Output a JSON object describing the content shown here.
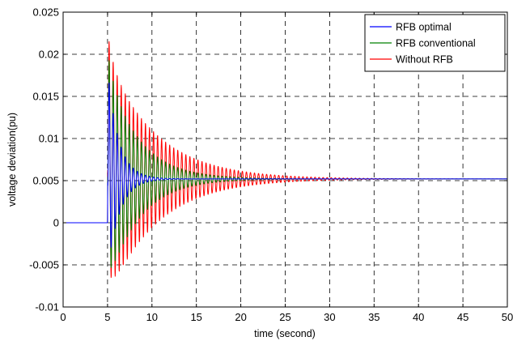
{
  "chart_data": {
    "type": "line",
    "xlabel": "time (second)",
    "ylabel": "voltage deviation(pu)",
    "xlim": [
      0,
      50
    ],
    "ylim": [
      -0.01,
      0.025
    ],
    "xticks": [
      0,
      5,
      10,
      15,
      20,
      25,
      30,
      35,
      40,
      45,
      50
    ],
    "yticks": [
      -0.01,
      -0.005,
      0,
      0.005,
      0.01,
      0.015,
      0.02,
      0.025
    ],
    "xtick_labels": [
      "0",
      "5",
      "10",
      "15",
      "20",
      "25",
      "30",
      "35",
      "40",
      "45",
      "50"
    ],
    "ytick_labels": [
      "-0.01",
      "-0.005",
      "0",
      "0.005",
      "0.01",
      "0.015",
      "0.02",
      "0.025"
    ],
    "grid": true,
    "legend_position": "top-right",
    "series": [
      {
        "name": "RFB optimal",
        "color": "#0000ff",
        "step_time": 5.0,
        "initial": 0,
        "final": 0.0052,
        "peak": 0.0185,
        "trough": -0.0055,
        "freq_hz": 2.2,
        "tau_s": 1.3
      },
      {
        "name": "RFB conventional",
        "color": "#008000",
        "step_time": 5.0,
        "initial": 0,
        "final": 0.0052,
        "peak": 0.0205,
        "trough": -0.0057,
        "freq_hz": 2.2,
        "tau_s": 3.5
      },
      {
        "name": "Without RFB",
        "color": "#ff0000",
        "step_time": 5.0,
        "initial": 0,
        "final": 0.0052,
        "peak": 0.0228,
        "trough": -0.006,
        "freq_hz": 2.2,
        "tau_s": 5.5
      }
    ]
  }
}
